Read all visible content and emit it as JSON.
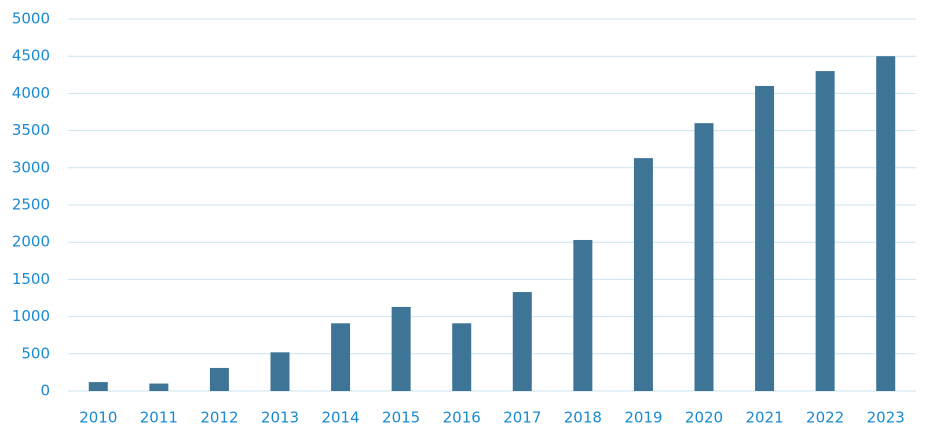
{
  "chart_data": {
    "type": "bar",
    "categories": [
      "2010",
      "2011",
      "2012",
      "2013",
      "2014",
      "2015",
      "2016",
      "2017",
      "2018",
      "2019",
      "2020",
      "2021",
      "2022",
      "2023"
    ],
    "values": [
      120,
      100,
      310,
      520,
      910,
      1130,
      910,
      1330,
      2030,
      3130,
      3600,
      4100,
      4300,
      4500
    ],
    "color": "#3e7596",
    "ylim": [
      0,
      5000
    ],
    "yticks": [
      0,
      500,
      1000,
      1500,
      2000,
      2500,
      3000,
      3500,
      4000,
      4500,
      5000
    ],
    "grid": true
  }
}
